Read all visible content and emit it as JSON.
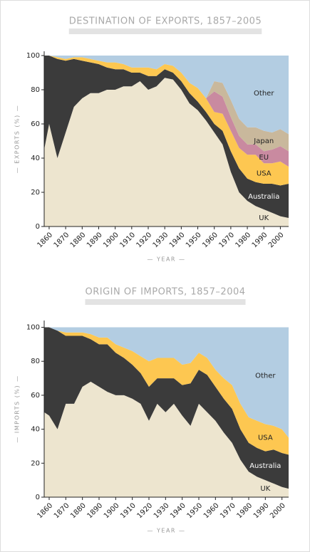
{
  "chart_data": [
    {
      "type": "area",
      "stacked": true,
      "title": "DESTINATION OF EXPORTS, 1857–2005",
      "x_label": "— YEAR —",
      "y_label": "— EXPORTS (%) —",
      "x": [
        1857,
        1860,
        1865,
        1870,
        1875,
        1880,
        1885,
        1890,
        1895,
        1900,
        1905,
        1910,
        1915,
        1920,
        1925,
        1930,
        1935,
        1940,
        1945,
        1950,
        1955,
        1960,
        1965,
        1970,
        1975,
        1980,
        1985,
        1990,
        1995,
        2000,
        2005
      ],
      "series": [
        {
          "name": "UK",
          "color": "#ede5cf",
          "values": [
            45,
            60,
            40,
            55,
            70,
            75,
            78,
            78,
            80,
            80,
            82,
            82,
            85,
            80,
            82,
            87,
            86,
            80,
            72,
            68,
            62,
            55,
            48,
            32,
            20,
            15,
            12,
            10,
            8,
            6,
            5
          ]
        },
        {
          "name": "Australia",
          "color": "#3b3b3b",
          "values": [
            55,
            40,
            58,
            42,
            28,
            22,
            18,
            17,
            13,
            12,
            10,
            8,
            5,
            8,
            6,
            5,
            4,
            5,
            6,
            5,
            5,
            5,
            8,
            12,
            14,
            13,
            14,
            15,
            17,
            18,
            20
          ]
        },
        {
          "name": "USA",
          "color": "#fdc751",
          "values": [
            0,
            0,
            1,
            1,
            1,
            2,
            2,
            2,
            3,
            4,
            3,
            3,
            3,
            5,
            4,
            3,
            4,
            5,
            6,
            8,
            8,
            7,
            10,
            12,
            12,
            14,
            16,
            12,
            12,
            14,
            10
          ]
        },
        {
          "name": "EU",
          "color": "#c98aa0",
          "values": [
            0,
            0,
            0,
            0,
            0,
            0,
            0,
            0,
            0,
            0,
            0,
            0,
            0,
            0,
            0,
            0,
            0,
            0,
            0,
            0,
            0,
            12,
            10,
            8,
            7,
            6,
            6,
            7,
            8,
            9,
            9
          ]
        },
        {
          "name": "Japan",
          "color": "#c9b89c",
          "values": [
            0,
            0,
            0,
            0,
            0,
            0,
            0,
            0,
            0,
            0,
            0,
            0,
            0,
            0,
            0,
            0,
            0,
            0,
            0,
            0,
            0,
            6,
            8,
            10,
            10,
            10,
            10,
            12,
            10,
            10,
            10
          ]
        },
        {
          "name": "Other",
          "color": "#b3cde2",
          "values": [
            0,
            0,
            1,
            2,
            1,
            1,
            2,
            3,
            4,
            4,
            5,
            7,
            7,
            7,
            8,
            5,
            6,
            10,
            16,
            19,
            25,
            15,
            16,
            26,
            37,
            42,
            42,
            44,
            45,
            43,
            46
          ]
        }
      ],
      "xlim": [
        1857,
        2005
      ],
      "ylim": [
        0,
        102.5
      ],
      "xticks": [
        1860,
        1870,
        1880,
        1890,
        1900,
        1910,
        1920,
        1930,
        1940,
        1950,
        1960,
        1970,
        1980,
        1990,
        2000
      ],
      "yticks": [
        0,
        20,
        40,
        60,
        80,
        100
      ]
    },
    {
      "type": "area",
      "stacked": true,
      "title": "ORIGIN OF IMPORTS, 1857–2004",
      "x_label": "— YEAR —",
      "y_label": "— IMPORTS (%) —",
      "x": [
        1857,
        1860,
        1865,
        1870,
        1875,
        1880,
        1885,
        1890,
        1895,
        1900,
        1905,
        1910,
        1915,
        1920,
        1925,
        1930,
        1935,
        1940,
        1945,
        1950,
        1955,
        1960,
        1965,
        1970,
        1975,
        1980,
        1985,
        1990,
        1995,
        2000,
        2004
      ],
      "series": [
        {
          "name": "UK",
          "color": "#ede5cf",
          "values": [
            50,
            48,
            40,
            55,
            55,
            65,
            68,
            65,
            62,
            60,
            60,
            58,
            55,
            45,
            55,
            50,
            55,
            48,
            42,
            55,
            50,
            45,
            38,
            32,
            22,
            15,
            12,
            10,
            8,
            6,
            5
          ]
        },
        {
          "name": "Australia",
          "color": "#3b3b3b",
          "values": [
            50,
            52,
            58,
            40,
            40,
            30,
            25,
            25,
            28,
            25,
            22,
            20,
            18,
            20,
            15,
            20,
            15,
            18,
            25,
            20,
            22,
            20,
            20,
            20,
            18,
            17,
            17,
            17,
            20,
            20,
            20
          ]
        },
        {
          "name": "USA",
          "color": "#fdc751",
          "values": [
            0,
            0,
            0,
            2,
            2,
            2,
            3,
            4,
            4,
            5,
            6,
            8,
            10,
            15,
            12,
            12,
            12,
            12,
            12,
            10,
            10,
            10,
            12,
            14,
            15,
            15,
            16,
            16,
            14,
            14,
            10
          ]
        },
        {
          "name": "Other",
          "color": "#b3cde2",
          "values": [
            0,
            0,
            2,
            3,
            3,
            3,
            4,
            6,
            6,
            10,
            12,
            14,
            17,
            20,
            18,
            18,
            18,
            22,
            21,
            15,
            18,
            25,
            30,
            34,
            45,
            53,
            55,
            57,
            58,
            60,
            65
          ]
        }
      ],
      "xlim": [
        1857,
        2004
      ],
      "ylim": [
        0,
        104
      ],
      "xticks": [
        1860,
        1870,
        1880,
        1890,
        1900,
        1910,
        1920,
        1930,
        1940,
        1950,
        1960,
        1970,
        1980,
        1990,
        2000
      ],
      "yticks": [
        0,
        20,
        40,
        60,
        80,
        100
      ]
    }
  ]
}
